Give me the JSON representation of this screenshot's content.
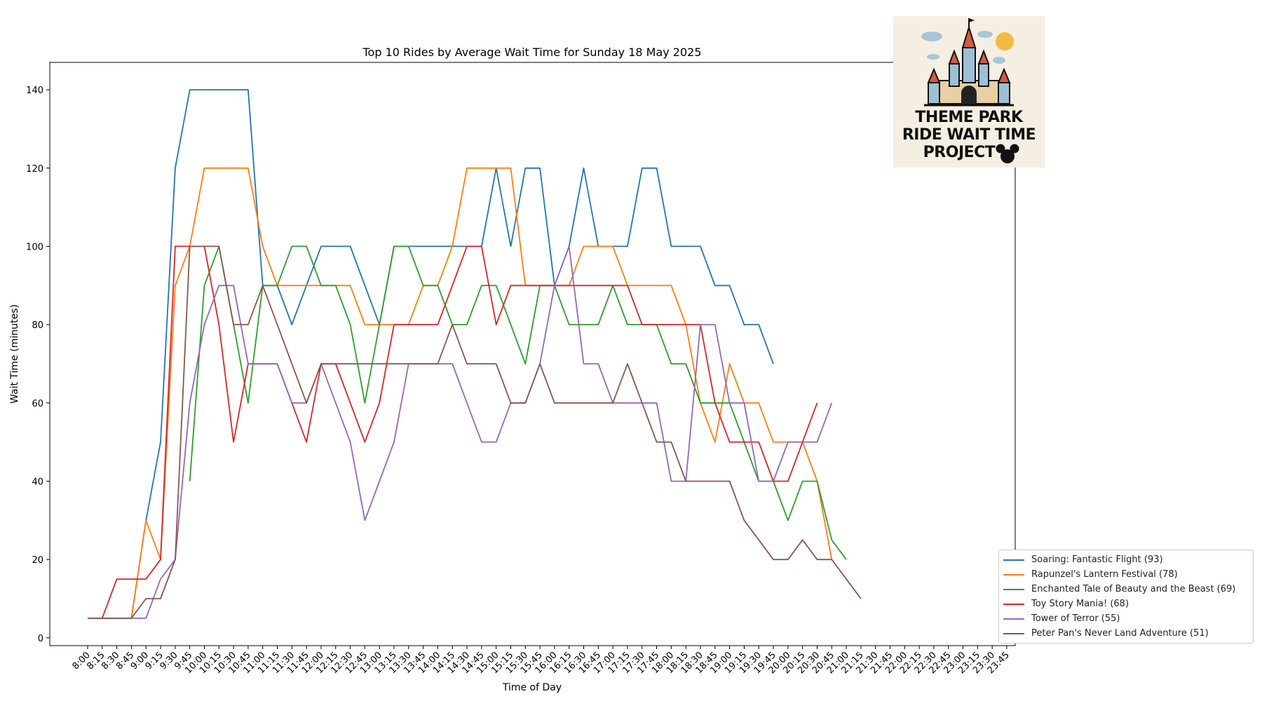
{
  "chart_data": {
    "type": "line",
    "title": "Top 10 Rides by Average Wait Time for Sunday 18 May 2025",
    "xlabel": "Time of Day",
    "ylabel": "Wait Time (minutes)",
    "ylim": [
      -2,
      147
    ],
    "yticks": [
      0,
      20,
      40,
      60,
      80,
      100,
      120,
      140
    ],
    "legend_position": "lower-right",
    "x": [
      "8:00",
      "8:15",
      "8:30",
      "8:45",
      "9:00",
      "9:15",
      "9:30",
      "9:45",
      "10:00",
      "10:15",
      "10:30",
      "10:45",
      "11:00",
      "11:15",
      "11:30",
      "11:45",
      "12:00",
      "12:15",
      "12:30",
      "12:45",
      "13:00",
      "13:15",
      "13:30",
      "13:45",
      "14:00",
      "14:15",
      "14:30",
      "14:45",
      "15:00",
      "15:15",
      "15:30",
      "15:45",
      "16:00",
      "16:15",
      "16:30",
      "16:45",
      "17:00",
      "17:15",
      "17:30",
      "17:45",
      "18:00",
      "18:15",
      "18:30",
      "18:45",
      "19:00",
      "19:15",
      "19:30",
      "19:45",
      "20:00",
      "20:15",
      "20:30",
      "20:45",
      "21:00",
      "21:15",
      "21:30",
      "21:45",
      "22:00",
      "22:15",
      "22:30",
      "22:45",
      "23:00",
      "23:15",
      "23:30",
      "23:45"
    ],
    "series": [
      {
        "name": "Soaring: Fantastic Flight (93)",
        "color": "#1f77b4",
        "values": [
          5,
          5,
          5,
          5,
          30,
          50,
          120,
          140,
          140,
          140,
          140,
          140,
          90,
          90,
          80,
          90,
          100,
          100,
          100,
          90,
          80,
          100,
          100,
          100,
          100,
          100,
          100,
          100,
          120,
          100,
          120,
          120,
          90,
          100,
          120,
          100,
          100,
          100,
          120,
          120,
          100,
          100,
          100,
          90,
          90,
          80,
          80,
          70,
          null,
          null,
          null,
          null,
          null,
          null,
          null,
          null,
          null,
          null,
          null,
          null,
          null,
          null,
          null,
          null
        ]
      },
      {
        "name": "Rapunzel's Lantern Festival (78)",
        "color": "#ff7f0e",
        "values": [
          5,
          5,
          5,
          5,
          30,
          20,
          90,
          100,
          120,
          120,
          120,
          120,
          100,
          90,
          90,
          90,
          90,
          90,
          90,
          80,
          80,
          80,
          80,
          90,
          90,
          100,
          120,
          120,
          120,
          120,
          90,
          90,
          90,
          90,
          100,
          100,
          100,
          90,
          90,
          90,
          90,
          80,
          60,
          50,
          70,
          60,
          60,
          50,
          50,
          50,
          40,
          20,
          null,
          null,
          null,
          null,
          null,
          null,
          null,
          null,
          null,
          null,
          null,
          null
        ]
      },
      {
        "name": "Enchanted Tale of Beauty and the Beast (69)",
        "color": "#2ca02c",
        "values": [
          null,
          null,
          null,
          null,
          null,
          null,
          null,
          40,
          90,
          100,
          80,
          60,
          90,
          90,
          100,
          100,
          90,
          90,
          80,
          60,
          80,
          100,
          100,
          90,
          90,
          80,
          80,
          90,
          90,
          80,
          70,
          90,
          90,
          80,
          80,
          80,
          90,
          80,
          80,
          80,
          70,
          70,
          60,
          60,
          60,
          50,
          40,
          40,
          30,
          40,
          40,
          25,
          20,
          null,
          null,
          null,
          null,
          null,
          null,
          null,
          null,
          null,
          null,
          null
        ]
      },
      {
        "name": "Toy Story Mania! (68)",
        "color": "#d62728",
        "values": [
          5,
          5,
          15,
          15,
          15,
          20,
          100,
          100,
          100,
          80,
          50,
          70,
          70,
          70,
          60,
          50,
          70,
          70,
          60,
          50,
          60,
          80,
          80,
          80,
          80,
          90,
          100,
          100,
          80,
          90,
          90,
          90,
          90,
          90,
          90,
          90,
          90,
          90,
          80,
          80,
          80,
          80,
          80,
          60,
          50,
          50,
          50,
          40,
          40,
          50,
          60,
          null,
          null,
          null,
          null,
          null,
          null,
          null,
          null,
          null,
          null,
          null,
          null,
          null
        ]
      },
      {
        "name": "Tower of Terror (55)",
        "color": "#9467bd",
        "values": [
          5,
          5,
          5,
          5,
          5,
          15,
          20,
          60,
          80,
          90,
          90,
          70,
          70,
          70,
          60,
          60,
          70,
          60,
          50,
          30,
          40,
          50,
          70,
          70,
          70,
          70,
          60,
          50,
          50,
          60,
          60,
          70,
          90,
          100,
          70,
          70,
          60,
          60,
          60,
          60,
          40,
          40,
          80,
          80,
          60,
          60,
          40,
          40,
          50,
          50,
          50,
          60,
          null,
          null,
          null,
          null,
          null,
          null,
          null,
          null,
          null,
          null,
          null,
          null
        ]
      },
      {
        "name": "Peter Pan's Never Land Adventure (51)",
        "color": "#8c564b",
        "values": [
          5,
          5,
          5,
          5,
          10,
          10,
          20,
          100,
          100,
          100,
          80,
          80,
          90,
          80,
          70,
          60,
          70,
          70,
          70,
          70,
          70,
          70,
          70,
          70,
          70,
          80,
          70,
          70,
          70,
          60,
          60,
          70,
          60,
          60,
          60,
          60,
          60,
          70,
          60,
          50,
          50,
          40,
          40,
          40,
          40,
          30,
          25,
          20,
          20,
          25,
          20,
          20,
          15,
          10,
          null,
          null,
          null,
          null,
          null,
          null,
          null,
          null,
          null,
          null
        ]
      }
    ]
  },
  "logo": {
    "lines": [
      "THEME PARK",
      "RIDE WAIT TIME",
      "PROJECT"
    ],
    "icon": "castle-icon"
  }
}
